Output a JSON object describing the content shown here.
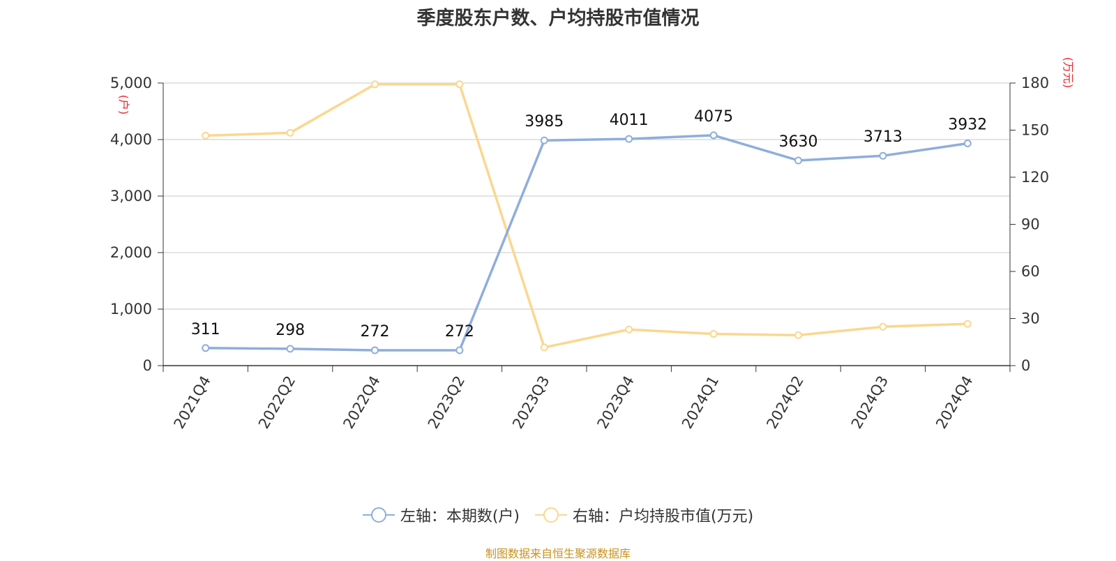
{
  "title": "季度股东户数、户均持股市值情况",
  "footer": "制图数据来自恒生聚源数据库",
  "colors": {
    "left_series": "#8eaedc",
    "right_series": "#fbd78f",
    "axis_unit": "#e8262a",
    "footer": "#c8921e",
    "grid": "#c8c8c8"
  },
  "chart_data": {
    "type": "line",
    "title": "季度股东户数、户均持股市值情况",
    "categories": [
      "2021Q4",
      "2022Q2",
      "2022Q4",
      "2023Q2",
      "2023Q3",
      "2023Q4",
      "2024Q1",
      "2024Q2",
      "2024Q3",
      "2024Q4"
    ],
    "y_left": {
      "unit_label": "(户)",
      "ylim": [
        0,
        5000
      ],
      "ticks": [
        0,
        1000,
        2000,
        3000,
        4000,
        5000
      ],
      "tick_labels": [
        "0",
        "1,000",
        "2,000",
        "3,000",
        "4,000",
        "5,000"
      ]
    },
    "y_right": {
      "unit_label": "(万元)",
      "ylim": [
        0,
        180
      ],
      "ticks": [
        0,
        30,
        60,
        90,
        120,
        150,
        180
      ],
      "tick_labels": [
        "0",
        "30",
        "60",
        "90",
        "120",
        "150",
        "180"
      ]
    },
    "series": [
      {
        "name": "左轴：本期数(户)",
        "axis": "left",
        "show_labels": true,
        "values": [
          311,
          298,
          272,
          272,
          3985,
          4011,
          4075,
          3630,
          3713,
          3932
        ]
      },
      {
        "name": "右轴：户均持股市值(万元)",
        "axis": "right",
        "show_labels": false,
        "values": [
          146.5,
          148.3,
          179.2,
          179.2,
          11.6,
          23.0,
          20.2,
          19.4,
          24.8,
          26.6
        ]
      }
    ],
    "grid": true,
    "legend_position": "bottom"
  }
}
